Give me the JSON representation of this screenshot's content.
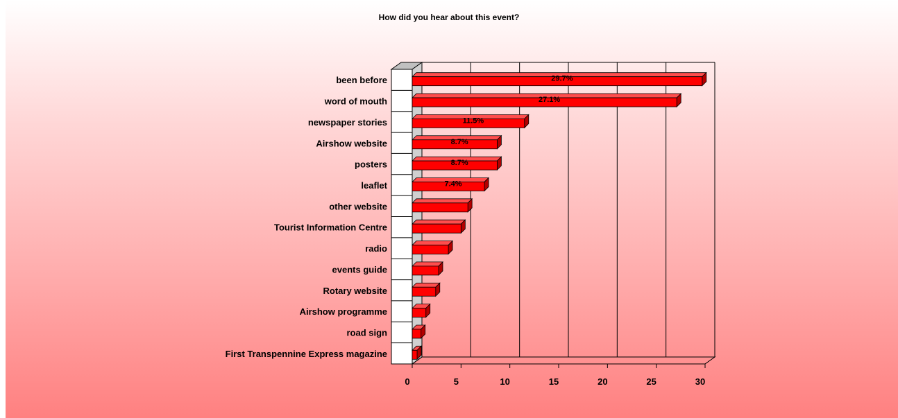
{
  "chart_data": {
    "type": "bar",
    "orientation": "horizontal",
    "title": "How did you hear about this event?",
    "categories": [
      "been before",
      "word of mouth",
      "newspaper stories",
      "Airshow website",
      "posters",
      "leaflet",
      "other website",
      "Tourist Information Centre",
      "radio",
      "events guide",
      "Rotary website",
      "Airshow programme",
      "road sign",
      "First Transpennine Express magazine"
    ],
    "values": [
      29.7,
      27.1,
      11.5,
      8.7,
      8.7,
      7.4,
      5.7,
      5.0,
      3.7,
      2.7,
      2.4,
      1.4,
      0.9,
      0.5
    ],
    "data_labels": [
      "29.7%",
      "27.1%",
      "11.5%",
      "8.7%",
      "8.7%",
      "7.4%",
      "",
      "",
      "",
      "",
      "",
      "",
      "",
      ""
    ],
    "xlim": [
      0,
      30
    ],
    "ticks": [
      "0",
      "5",
      "10",
      "15",
      "20",
      "25",
      "30"
    ],
    "xlabel": "",
    "ylabel": "",
    "grid": true,
    "bar_color": "#ff0000",
    "three_d": true
  }
}
